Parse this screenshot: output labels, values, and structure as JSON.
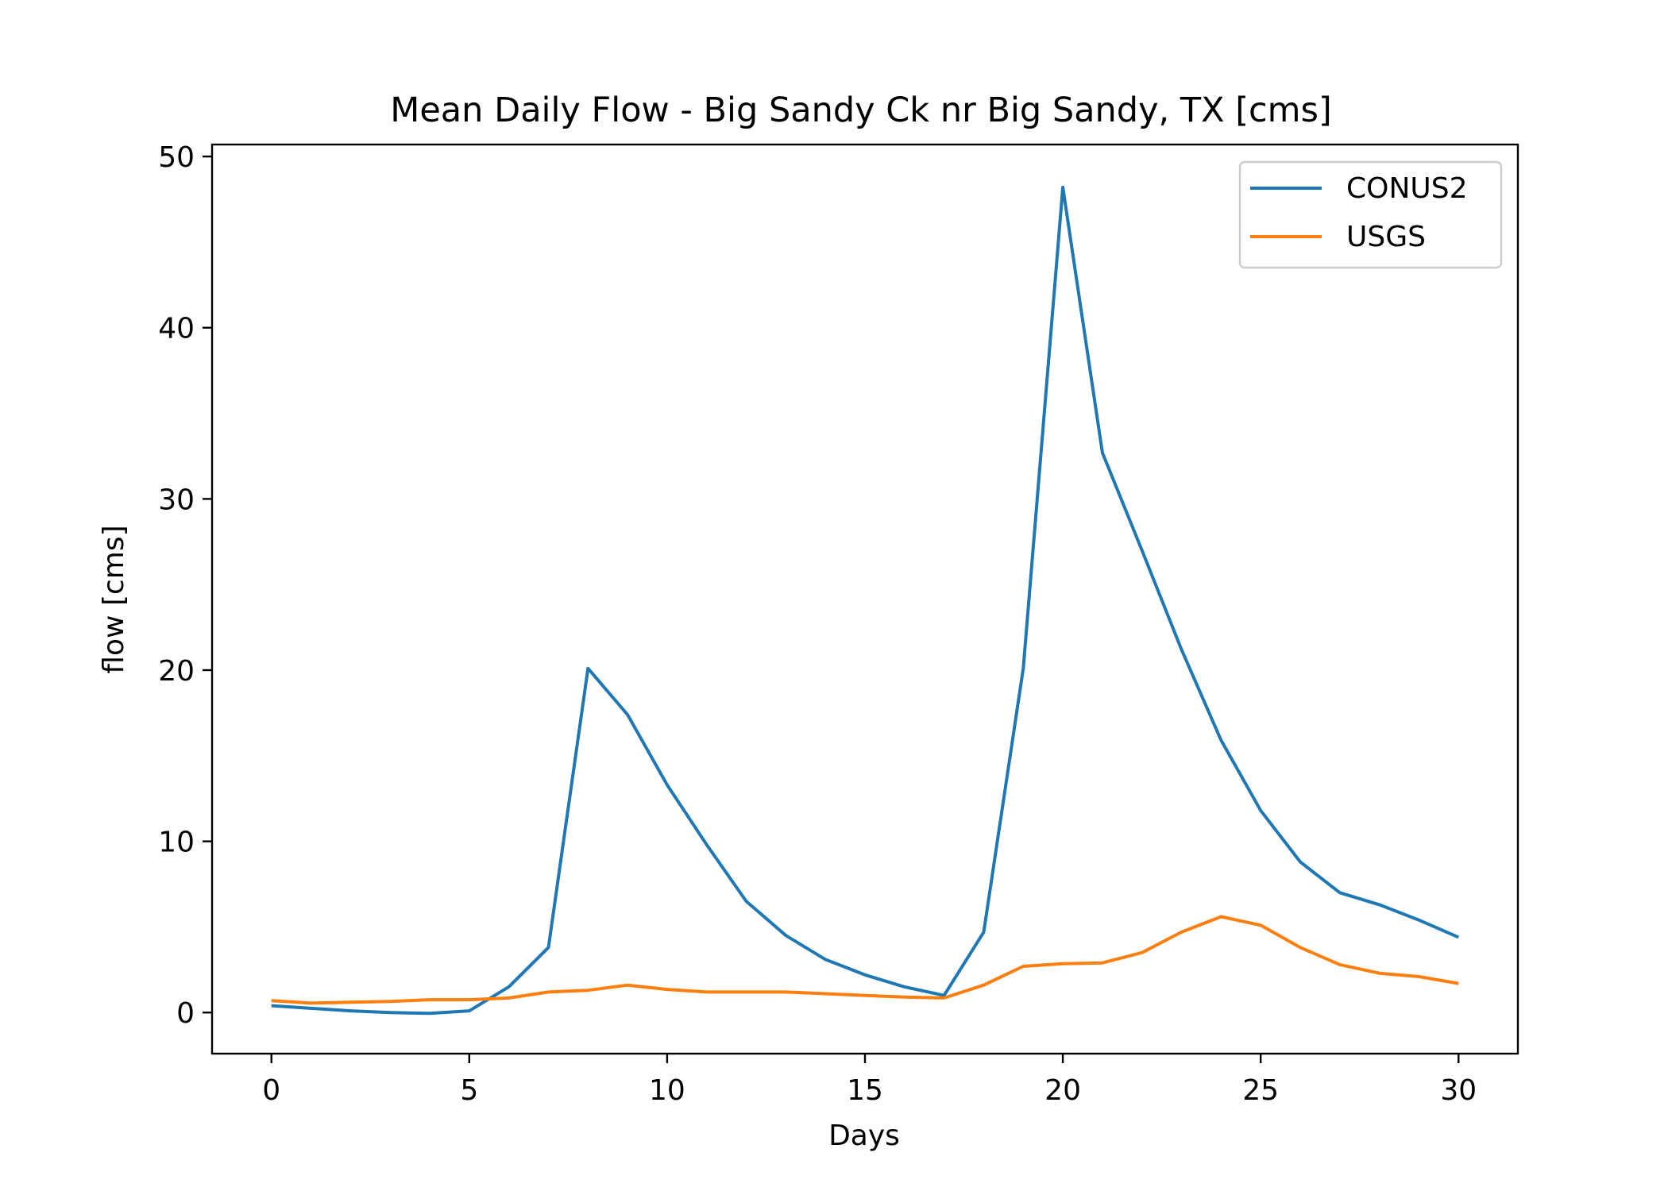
{
  "chart_data": {
    "type": "line",
    "title": "Mean Daily Flow - Big Sandy Ck nr Big Sandy, TX [cms]",
    "xlabel": "Days",
    "ylabel": "flow [cms]",
    "xlim": [
      -1.5,
      31.5
    ],
    "ylim": [
      -2.4,
      50.7
    ],
    "xticks": [
      0,
      5,
      10,
      15,
      20,
      25,
      30
    ],
    "yticks": [
      0,
      10,
      20,
      30,
      40,
      50
    ],
    "grid": false,
    "legend_position": "top-right",
    "x": [
      0,
      1,
      2,
      3,
      4,
      5,
      6,
      7,
      8,
      9,
      10,
      11,
      12,
      13,
      14,
      15,
      16,
      17,
      18,
      19,
      20,
      21,
      22,
      23,
      24,
      25,
      26,
      27,
      28,
      29,
      30
    ],
    "series": [
      {
        "name": "CONUS2",
        "color": "#1f77b4",
        "values": [
          0.4,
          0.25,
          0.1,
          0.0,
          -0.05,
          0.1,
          1.5,
          3.8,
          20.1,
          17.4,
          13.3,
          9.8,
          6.5,
          4.5,
          3.1,
          2.2,
          1.5,
          1.0,
          4.7,
          20.1,
          48.2,
          32.7,
          27.0,
          21.2,
          15.9,
          11.8,
          8.8,
          7.0,
          6.3,
          5.4,
          4.4
        ]
      },
      {
        "name": "USGS",
        "color": "#ff7f0e",
        "values": [
          0.7,
          0.55,
          0.6,
          0.65,
          0.75,
          0.75,
          0.85,
          1.2,
          1.3,
          1.6,
          1.35,
          1.2,
          1.2,
          1.2,
          1.1,
          1.0,
          0.9,
          0.85,
          1.6,
          2.7,
          2.85,
          2.9,
          3.5,
          4.7,
          5.6,
          5.1,
          3.8,
          2.8,
          2.3,
          2.1,
          1.7
        ]
      }
    ]
  }
}
